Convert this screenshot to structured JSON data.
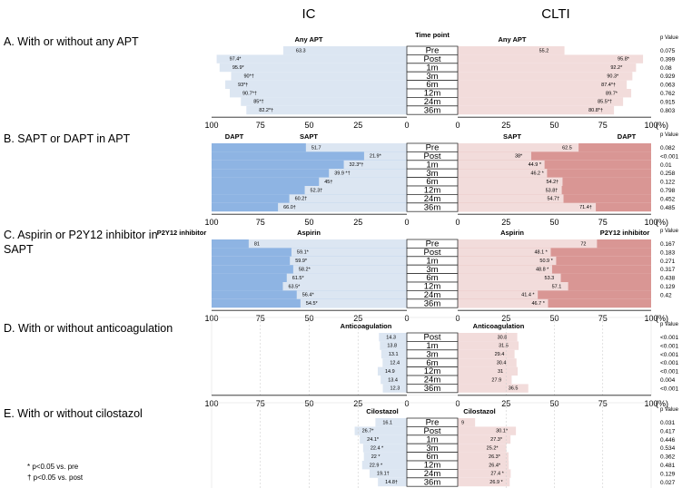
{
  "header": {
    "left": "IC",
    "right": "CLTI"
  },
  "axis_ticks": [
    "100",
    "75",
    "50",
    "25",
    "0",
    "25",
    "50",
    "75",
    "100"
  ],
  "unit": "(%)",
  "pvalue_header": "p Value",
  "footnotes": [
    "* p<0.05 vs. pre",
    "† p<0.05 vs. post"
  ],
  "colors": {
    "light_blue": "#dce6f2",
    "dark_blue": "#8eb4e3",
    "light_pink": "#f2dcdb",
    "dark_pink": "#d99694"
  },
  "chart_data": [
    {
      "type": "bar",
      "title": "A. With or without any APT",
      "time_header": "Time point",
      "left_series": {
        "inner": "Any APT",
        "outer": ""
      },
      "right_series": {
        "inner": "Any APT",
        "outer": ""
      },
      "categories": [
        "Pre",
        "Post",
        "1m",
        "3m",
        "6m",
        "12m",
        "24m",
        "36m"
      ],
      "ic_values": [
        63.3,
        97.4,
        95.9,
        90,
        93,
        90.7,
        85,
        82.2
      ],
      "ic_labels": [
        "63.3",
        "97.4*",
        "95.9*",
        "90*†",
        "93*†",
        "90.7*†",
        "85*†",
        "82.2*†"
      ],
      "clti_values": [
        55.2,
        95.8,
        92.2,
        90.3,
        87.4,
        89.7,
        85.5,
        80.8
      ],
      "clti_labels": [
        "55.2",
        "95.8*",
        "92.2*",
        "90.3*",
        "87.4*†",
        "89.7*",
        "85.5*†",
        "80.8*†"
      ],
      "p_values": [
        "0.075",
        "0.399",
        "0.08",
        "0.929",
        "0.063",
        "0.762",
        "0.915",
        "0.803"
      ],
      "xlim": [
        0,
        100
      ]
    },
    {
      "type": "bar",
      "title": "B. SAPT or DAPT in APT",
      "time_header": "",
      "left_series": {
        "inner": "SAPT",
        "outer": "DAPT"
      },
      "right_series": {
        "inner": "SAPT",
        "outer": "DAPT"
      },
      "categories": [
        "Pre",
        "Post",
        "1m",
        "3m",
        "6m",
        "12m",
        "24m",
        "36m"
      ],
      "ic_values": [
        51.7,
        21.9,
        32.3,
        39.9,
        45,
        52.3,
        60.2,
        66
      ],
      "ic_labels": [
        "51.7",
        "21.9*",
        "32.3*†",
        "39.9 *†",
        "45†",
        "52.3†",
        "60.2†",
        "66.0†"
      ],
      "clti_values": [
        62.5,
        38,
        44.9,
        46.2,
        54.2,
        53.8,
        54.7,
        71.4
      ],
      "clti_labels": [
        "62.5",
        "38*",
        "44.9 *",
        "46.2 *",
        "54.2†",
        "53.8†",
        "54.7†",
        "71.4†"
      ],
      "p_values": [
        "0.082",
        "<0.001",
        "0.01",
        "0.258",
        "0.122",
        "0.798",
        "0.452",
        "0.485"
      ],
      "xlim": [
        0,
        100
      ]
    },
    {
      "type": "bar",
      "title": "C. Aspirin or P2Y12 inhibitor in SAPT",
      "title_lines": [
        "C. Aspirin or P2Y12 inhibitor in",
        "SAPT"
      ],
      "time_header": "",
      "left_series": {
        "inner": "Aspirin",
        "outer": "P2Y12 inhibitor"
      },
      "right_series": {
        "inner": "Aspirin",
        "outer": "P2Y12 inhibitor"
      },
      "categories": [
        "Pre",
        "Post",
        "1m",
        "3m",
        "6m",
        "12m",
        "24m",
        "36m"
      ],
      "ic_values": [
        81,
        59.1,
        59.9,
        58.2,
        61.5,
        63.5,
        56.4,
        54.5
      ],
      "ic_labels": [
        "81",
        "59.1*",
        "59.9*",
        "58.2*",
        "61.5*",
        "63.5*",
        "56.4*",
        "54.5*"
      ],
      "clti_values": [
        72,
        48.1,
        50.9,
        48.8,
        53.3,
        57.1,
        41.4,
        46.7
      ],
      "clti_labels": [
        "72",
        "48.1 *",
        "50.9 *",
        "48.8 *",
        "53.3",
        "57.1",
        "41.4 *",
        "46.7 *"
      ],
      "p_values": [
        "0.167",
        "0.183",
        "0.271",
        "0.317",
        "0.438",
        "0.129",
        "0.42",
        ""
      ],
      "xlim": [
        0,
        100
      ]
    },
    {
      "type": "bar",
      "title": "D. With or without anticoagulation",
      "time_header": "",
      "left_series": {
        "inner": "Anticoagulation",
        "outer": ""
      },
      "right_series": {
        "inner": "Anticoagulation",
        "outer": ""
      },
      "categories": [
        "Post",
        "1m",
        "3m",
        "6m",
        "12m",
        "24m",
        "36m"
      ],
      "ic_values": [
        14.3,
        13.8,
        13.1,
        12.4,
        14.9,
        13.4,
        12.3
      ],
      "ic_labels": [
        "14.3",
        "13.8",
        "13.1",
        "12.4",
        "14.9",
        "13.4",
        "12.3"
      ],
      "clti_values": [
        30.8,
        31.5,
        29.4,
        30.4,
        31,
        27.9,
        36.5
      ],
      "clti_labels": [
        "30.8",
        "31.5",
        "29.4",
        "30.4",
        "31",
        "27.9",
        "36.5"
      ],
      "p_values": [
        "<0.001",
        "<0.001",
        "<0.001",
        "<0.001",
        "<0.001",
        "0.004",
        "<0.001"
      ],
      "xlim": [
        0,
        100
      ]
    },
    {
      "type": "bar",
      "title": "E. With or without cilostazol",
      "time_header": "",
      "left_series": {
        "inner": "Cilostazol",
        "outer": ""
      },
      "right_series": {
        "inner": "Cilostazol",
        "outer": ""
      },
      "categories": [
        "Pre",
        "Post",
        "1m",
        "3m",
        "6m",
        "12m",
        "24m",
        "36m"
      ],
      "ic_values": [
        16.1,
        26.7,
        24.1,
        22.4,
        22,
        22.9,
        19.1,
        14.8
      ],
      "ic_labels": [
        "16.1",
        "26.7*",
        "24.1*",
        "22.4 *",
        "22 *",
        "22.9 *",
        "19.1†",
        "14.8†"
      ],
      "clti_values": [
        9,
        30.1,
        27.3,
        25.2,
        26.3,
        26.4,
        27.4,
        26.9
      ],
      "clti_labels": [
        "9",
        "30.1*",
        "27.3*",
        "25.2*",
        "26.3*",
        "26.4*",
        "27.4 *",
        "26.9 *"
      ],
      "p_values": [
        "0.031",
        "0.417",
        "0.446",
        "0.534",
        "0.362",
        "0.481",
        "0.129",
        "0.027"
      ],
      "xlim": [
        0,
        100
      ]
    }
  ]
}
